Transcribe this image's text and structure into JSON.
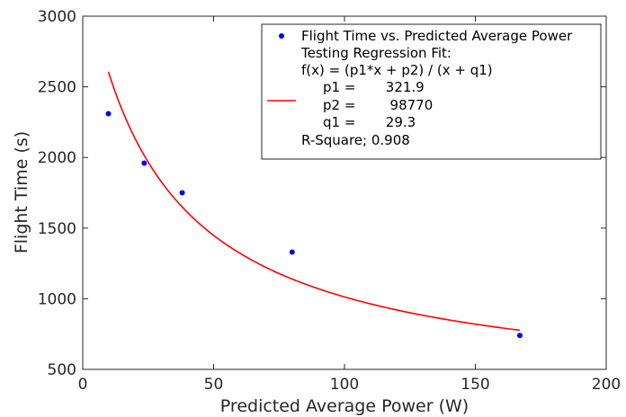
{
  "chart_data": {
    "type": "scatter",
    "xlabel": "Predicted Average Power (W)",
    "ylabel": "Flight Time (s)",
    "xlim": [
      0,
      200
    ],
    "ylim": [
      500,
      3000
    ],
    "x_ticks": [
      0,
      50,
      100,
      150,
      200
    ],
    "y_ticks": [
      500,
      1000,
      1500,
      2000,
      2500,
      3000
    ],
    "grid": false,
    "legend_position": "top-right",
    "series": [
      {
        "name": "Flight Time vs. Predicted Average Power",
        "type": "scatter",
        "color": "#0000ff",
        "points": [
          {
            "x": 9.8,
            "y": 2310
          },
          {
            "x": 23.5,
            "y": 1960
          },
          {
            "x": 38.0,
            "y": 1750
          },
          {
            "x": 80.0,
            "y": 1330
          },
          {
            "x": 167.0,
            "y": 740
          }
        ]
      },
      {
        "name": "Testing Regression Fit",
        "type": "line",
        "color": "#ff0000",
        "function": "rational",
        "params": {
          "p1": 321.9,
          "p2": 98770,
          "q1": 29.3
        },
        "x_range": [
          9.8,
          167.0
        ]
      }
    ],
    "legend": {
      "entries": [
        "Flight Time vs. Predicted Average Power",
        "Testing Regression Fit:",
        "f(x) = (p1*x + p2) / (x + q1)",
        "p1 =       321.9",
        "p2 =        98770",
        "q1 =       29.3",
        "R-Square; 0.908"
      ]
    }
  }
}
